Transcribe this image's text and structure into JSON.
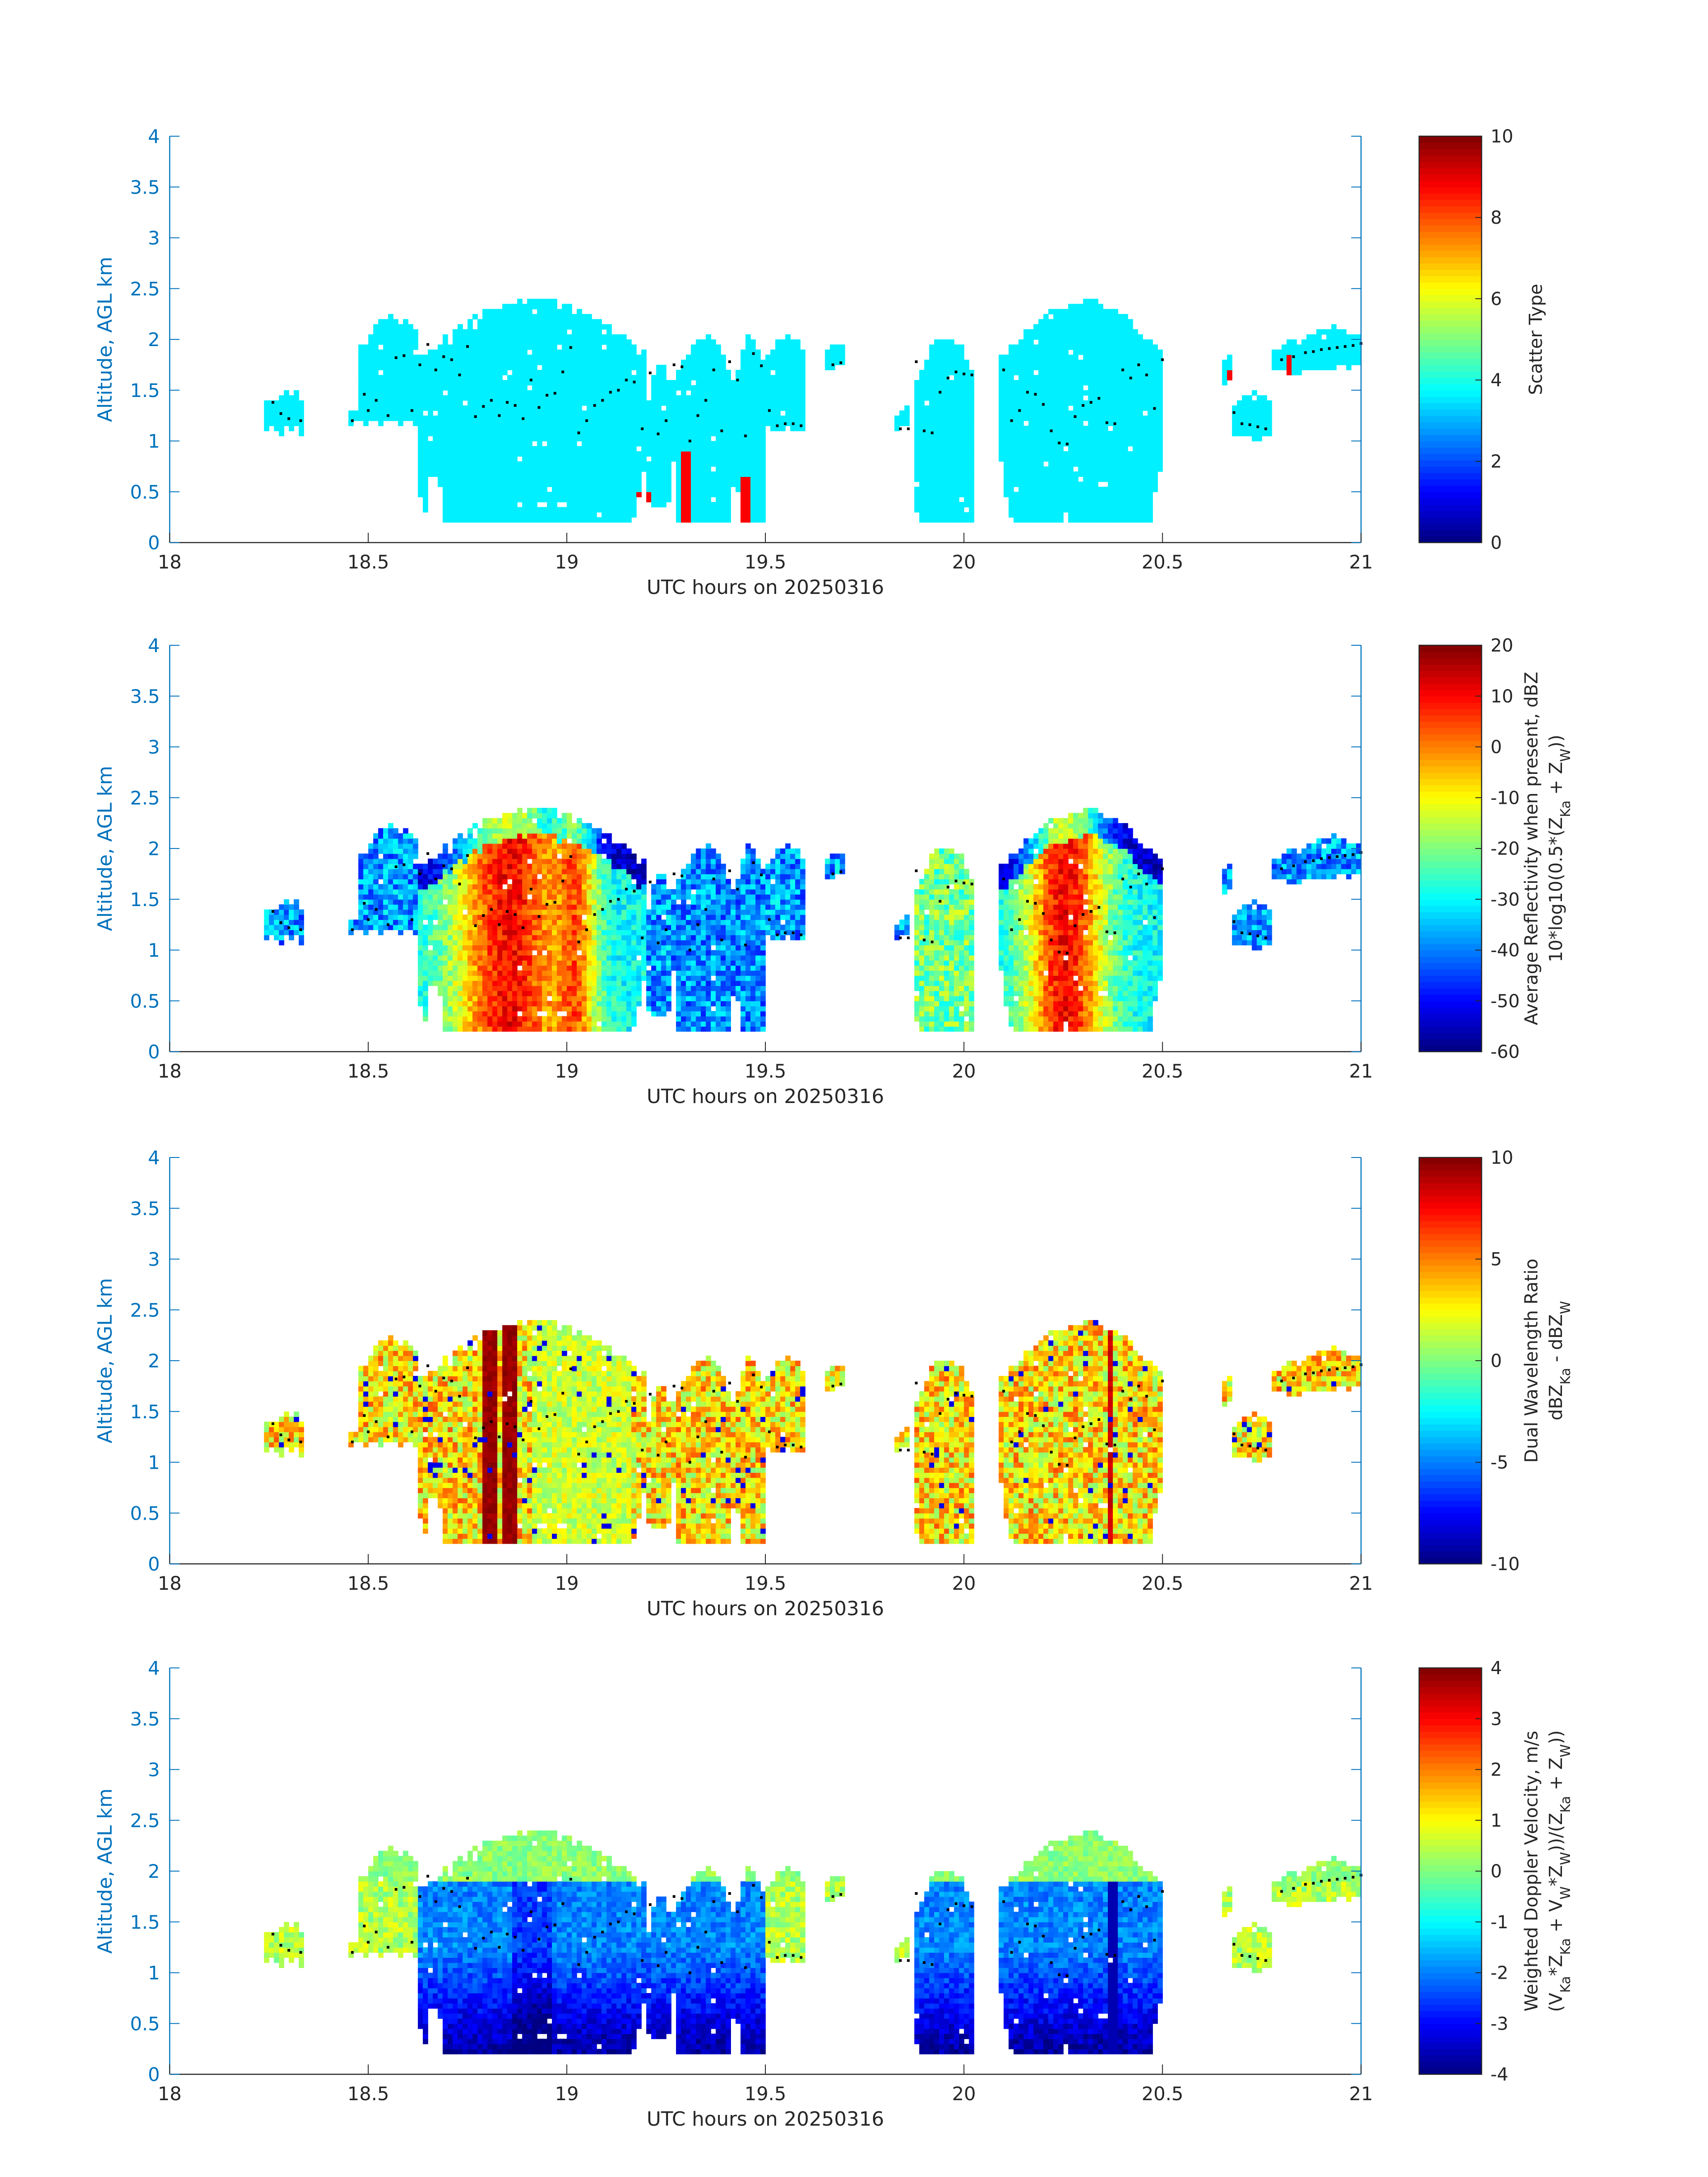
{
  "colors": {
    "axis_blue": "#0072BD",
    "text_dark": "#262626",
    "frame": "#262626",
    "marker": "#000000"
  },
  "colormap": "jet",
  "chart_data": [
    {
      "type": "heatmap",
      "name": "scatter-type",
      "xlabel": "UTC hours on 20250316",
      "ylabel": "Altitude, AGL km",
      "xlim": [
        18,
        21
      ],
      "ylim": [
        0,
        4
      ],
      "xticks": [
        "18",
        "18.5",
        "19",
        "19.5",
        "20",
        "20.5",
        "21"
      ],
      "yticks": [
        "0",
        "0.5",
        "1",
        "1.5",
        "2",
        "2.5",
        "3",
        "3.5",
        "4"
      ],
      "colorbar": {
        "label_lines": [
          "Scatter Type"
        ],
        "clim": [
          0,
          10
        ],
        "ticks": [
          "0",
          "2",
          "4",
          "6",
          "8",
          "10"
        ]
      },
      "field": "scatter",
      "dominant_value": 3.6,
      "secondary_value": 8.8
    },
    {
      "type": "heatmap",
      "name": "reflectivity",
      "xlabel": "UTC hours on 20250316",
      "ylabel": "Altitude, AGL km",
      "xlim": [
        18,
        21
      ],
      "ylim": [
        0,
        4
      ],
      "xticks": [
        "18",
        "18.5",
        "19",
        "19.5",
        "20",
        "20.5",
        "21"
      ],
      "yticks": [
        "0",
        "0.5",
        "1",
        "1.5",
        "2",
        "2.5",
        "3",
        "3.5",
        "4"
      ],
      "colorbar": {
        "label_lines": [
          "Average Reflectivity when present, dBZ",
          "10*log10(0.5*(Z_Ka + Z_W))"
        ],
        "clim": [
          -60,
          20
        ],
        "ticks": [
          "-60",
          "-50",
          "-40",
          "-30",
          "-20",
          "-10",
          "0",
          "10",
          "20"
        ]
      },
      "field": "reflectivity"
    },
    {
      "type": "heatmap",
      "name": "dual-wavelength-ratio",
      "xlabel": "UTC hours on 20250316",
      "ylabel": "Altitude, AGL km",
      "xlim": [
        18,
        21
      ],
      "ylim": [
        0,
        4
      ],
      "xticks": [
        "18",
        "18.5",
        "19",
        "19.5",
        "20",
        "20.5",
        "21"
      ],
      "yticks": [
        "0",
        "0.5",
        "1",
        "1.5",
        "2",
        "2.5",
        "3",
        "3.5",
        "4"
      ],
      "colorbar": {
        "label_lines": [
          "Dual Wavelength Ratio",
          "dBZ_Ka - dBZ_W"
        ],
        "clim": [
          -10,
          10
        ],
        "ticks": [
          "-10",
          "-5",
          "0",
          "5",
          "10"
        ]
      },
      "field": "dwr"
    },
    {
      "type": "heatmap",
      "name": "doppler-velocity",
      "xlabel": "UTC hours on 20250316",
      "ylabel": "Altitude, AGL km",
      "xlim": [
        18,
        21
      ],
      "ylim": [
        0,
        4
      ],
      "xticks": [
        "18",
        "18.5",
        "19",
        "19.5",
        "20",
        "20.5",
        "21"
      ],
      "yticks": [
        "0",
        "0.5",
        "1",
        "1.5",
        "2",
        "2.5",
        "3",
        "3.5",
        "4"
      ],
      "colorbar": {
        "label_lines": [
          "Weighted Doppler Velocity, m/s",
          "(V_Ka*Z_Ka + V_W*Z_W))/(Z_Ka + Z_W))"
        ],
        "clim": [
          -4,
          4
        ],
        "ticks": [
          "-4",
          "-3",
          "-2",
          "-1",
          "0",
          "1",
          "2",
          "3",
          "4"
        ]
      },
      "field": "velocity"
    }
  ],
  "cloud_segments": [
    {
      "t0": 18.24,
      "t1": 18.34,
      "base": 1.08,
      "top": 1.45
    },
    {
      "t0": 18.45,
      "t1": 18.47,
      "base": 1.12,
      "top": 1.3
    },
    {
      "t0": 18.48,
      "t1": 18.63,
      "base": 1.15,
      "top": 2.2
    },
    {
      "t0": 18.63,
      "t1": 19.2,
      "base": 0.2,
      "top": 2.35
    },
    {
      "t0": 19.2,
      "t1": 19.26,
      "base": 0.35,
      "top": 1.75
    },
    {
      "t0": 19.26,
      "t1": 19.42,
      "base": 0.2,
      "top": 2.0
    },
    {
      "t0": 19.42,
      "t1": 19.5,
      "base": 0.2,
      "top": 2.0
    },
    {
      "t0": 19.5,
      "t1": 19.6,
      "base": 1.1,
      "top": 2.0
    },
    {
      "t0": 19.65,
      "t1": 19.7,
      "base": 1.7,
      "top": 1.95
    },
    {
      "t0": 19.83,
      "t1": 19.86,
      "base": 1.1,
      "top": 1.3
    },
    {
      "t0": 19.87,
      "t1": 20.03,
      "base": 0.2,
      "top": 2.0
    },
    {
      "t0": 20.09,
      "t1": 20.5,
      "base": 0.2,
      "top": 2.35
    },
    {
      "t0": 20.65,
      "t1": 20.68,
      "base": 1.55,
      "top": 1.85
    },
    {
      "t0": 20.68,
      "t1": 20.78,
      "base": 1.0,
      "top": 1.45
    },
    {
      "t0": 20.78,
      "t1": 20.85,
      "base": 1.65,
      "top": 1.95
    },
    {
      "t0": 20.85,
      "t1": 21.0,
      "base": 1.7,
      "top": 2.1
    }
  ],
  "dot_markers": [
    [
      18.26,
      1.38
    ],
    [
      18.28,
      1.27
    ],
    [
      18.3,
      1.22
    ],
    [
      18.33,
      1.2
    ],
    [
      18.46,
      1.2
    ],
    [
      18.49,
      1.46
    ],
    [
      18.5,
      1.3
    ],
    [
      18.52,
      1.4
    ],
    [
      18.55,
      1.25
    ],
    [
      18.57,
      1.82
    ],
    [
      18.59,
      1.84
    ],
    [
      18.61,
      1.3
    ],
    [
      18.63,
      1.75
    ],
    [
      18.65,
      1.95
    ],
    [
      18.67,
      1.7
    ],
    [
      18.69,
      1.83
    ],
    [
      18.71,
      1.8
    ],
    [
      18.73,
      1.65
    ],
    [
      18.75,
      1.93
    ],
    [
      18.77,
      1.24
    ],
    [
      18.79,
      1.34
    ],
    [
      18.81,
      1.4
    ],
    [
      18.83,
      1.25
    ],
    [
      18.85,
      1.38
    ],
    [
      18.87,
      1.35
    ],
    [
      18.89,
      1.22
    ],
    [
      18.91,
      1.6
    ],
    [
      18.93,
      1.33
    ],
    [
      18.95,
      1.45
    ],
    [
      18.97,
      1.47
    ],
    [
      18.99,
      1.68
    ],
    [
      19.01,
      1.92
    ],
    [
      19.03,
      1.08
    ],
    [
      19.05,
      1.2
    ],
    [
      19.07,
      1.35
    ],
    [
      19.09,
      1.4
    ],
    [
      19.11,
      1.48
    ],
    [
      19.13,
      1.5
    ],
    [
      19.15,
      1.6
    ],
    [
      19.17,
      1.58
    ],
    [
      19.19,
      1.12
    ],
    [
      19.21,
      1.67
    ],
    [
      19.23,
      1.07
    ],
    [
      19.25,
      1.2
    ],
    [
      19.27,
      1.75
    ],
    [
      19.29,
      1.73
    ],
    [
      19.31,
      1.0
    ],
    [
      19.33,
      1.25
    ],
    [
      19.35,
      1.4
    ],
    [
      19.37,
      1.7
    ],
    [
      19.39,
      1.1
    ],
    [
      19.41,
      1.78
    ],
    [
      19.43,
      1.6
    ],
    [
      19.45,
      1.05
    ],
    [
      19.47,
      1.86
    ],
    [
      19.49,
      1.74
    ],
    [
      19.51,
      1.3
    ],
    [
      19.53,
      1.15
    ],
    [
      19.55,
      1.17
    ],
    [
      19.57,
      1.17
    ],
    [
      19.59,
      1.15
    ],
    [
      19.67,
      1.75
    ],
    [
      19.69,
      1.77
    ],
    [
      19.84,
      1.12
    ],
    [
      19.86,
      1.12
    ],
    [
      19.88,
      1.78
    ],
    [
      19.9,
      1.1
    ],
    [
      19.92,
      1.08
    ],
    [
      19.94,
      1.48
    ],
    [
      19.96,
      1.62
    ],
    [
      19.98,
      1.68
    ],
    [
      20.0,
      1.66
    ],
    [
      20.02,
      1.65
    ],
    [
      20.1,
      1.7
    ],
    [
      20.12,
      1.2
    ],
    [
      20.14,
      1.3
    ],
    [
      20.16,
      1.48
    ],
    [
      20.18,
      1.46
    ],
    [
      20.2,
      1.36
    ],
    [
      20.22,
      1.1
    ],
    [
      20.24,
      0.98
    ],
    [
      20.26,
      0.97
    ],
    [
      20.28,
      1.24
    ],
    [
      20.3,
      1.35
    ],
    [
      20.32,
      1.38
    ],
    [
      20.34,
      1.42
    ],
    [
      20.36,
      1.18
    ],
    [
      20.38,
      1.17
    ],
    [
      20.4,
      1.7
    ],
    [
      20.42,
      1.62
    ],
    [
      20.44,
      1.75
    ],
    [
      20.46,
      1.65
    ],
    [
      20.48,
      1.32
    ],
    [
      20.5,
      1.8
    ],
    [
      20.68,
      1.28
    ],
    [
      20.7,
      1.17
    ],
    [
      20.72,
      1.16
    ],
    [
      20.74,
      1.14
    ],
    [
      20.76,
      1.12
    ],
    [
      20.8,
      1.8
    ],
    [
      20.83,
      1.83
    ],
    [
      20.86,
      1.87
    ],
    [
      20.88,
      1.88
    ],
    [
      20.9,
      1.9
    ],
    [
      20.92,
      1.91
    ],
    [
      20.94,
      1.92
    ],
    [
      20.96,
      1.93
    ],
    [
      20.98,
      1.94
    ],
    [
      21.0,
      1.96
    ]
  ]
}
